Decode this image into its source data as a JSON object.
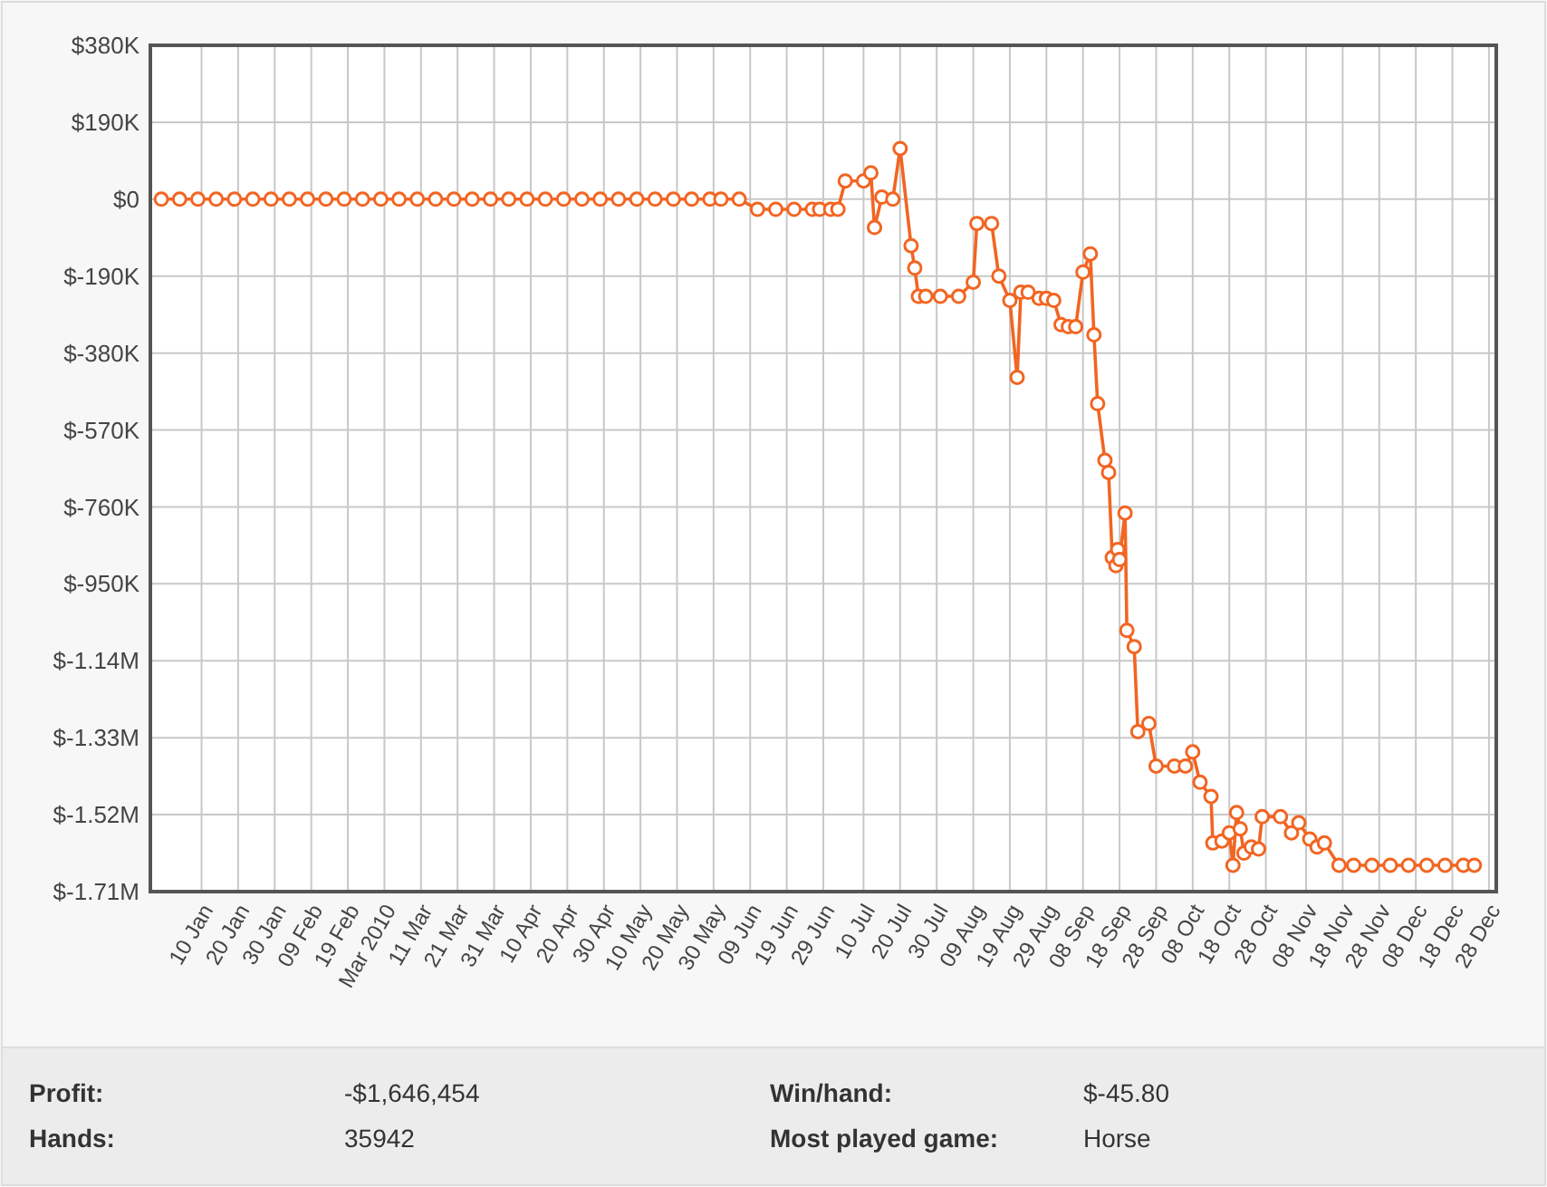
{
  "chart_data": {
    "type": "line",
    "marker": "circle",
    "line_style": "solid",
    "grid": true,
    "xlim": [
      "2009-12-27",
      "2010-12-30"
    ],
    "ylim": [
      -1710000,
      380000
    ],
    "yticks": [
      {
        "value": 380000,
        "label": "$380K"
      },
      {
        "value": 190000,
        "label": "$190K"
      },
      {
        "value": 0,
        "label": "$0"
      },
      {
        "value": -190000,
        "label": "$-190K"
      },
      {
        "value": -380000,
        "label": "$-380K"
      },
      {
        "value": -570000,
        "label": "$-570K"
      },
      {
        "value": -760000,
        "label": "$-760K"
      },
      {
        "value": -950000,
        "label": "$-950K"
      },
      {
        "value": -1140000,
        "label": "$-1.14M"
      },
      {
        "value": -1330000,
        "label": "$-1.33M"
      },
      {
        "value": -1520000,
        "label": "$-1.52M"
      },
      {
        "value": -1710000,
        "label": "$-1.71M"
      }
    ],
    "xticks": [
      {
        "value": "2010-01-10",
        "label": "10 Jan"
      },
      {
        "value": "2010-01-20",
        "label": "20 Jan"
      },
      {
        "value": "2010-01-30",
        "label": "30 Jan"
      },
      {
        "value": "2010-02-09",
        "label": "09 Feb"
      },
      {
        "value": "2010-02-19",
        "label": "19 Feb"
      },
      {
        "value": "2010-03-01",
        "label": "Mar 2010"
      },
      {
        "value": "2010-03-11",
        "label": "11 Mar"
      },
      {
        "value": "2010-03-21",
        "label": "21 Mar"
      },
      {
        "value": "2010-03-31",
        "label": "31 Mar"
      },
      {
        "value": "2010-04-10",
        "label": "10 Apr"
      },
      {
        "value": "2010-04-20",
        "label": "20 Apr"
      },
      {
        "value": "2010-04-30",
        "label": "30 Apr"
      },
      {
        "value": "2010-05-10",
        "label": "10 May"
      },
      {
        "value": "2010-05-20",
        "label": "20 May"
      },
      {
        "value": "2010-05-30",
        "label": "30 May"
      },
      {
        "value": "2010-06-09",
        "label": "09 Jun"
      },
      {
        "value": "2010-06-19",
        "label": "19 Jun"
      },
      {
        "value": "2010-06-29",
        "label": "29 Jun"
      },
      {
        "value": "2010-07-10",
        "label": "10 Jul"
      },
      {
        "value": "2010-07-20",
        "label": "20 Jul"
      },
      {
        "value": "2010-07-30",
        "label": "30 Jul"
      },
      {
        "value": "2010-08-09",
        "label": "09 Aug"
      },
      {
        "value": "2010-08-19",
        "label": "19 Aug"
      },
      {
        "value": "2010-08-29",
        "label": "29 Aug"
      },
      {
        "value": "2010-09-08",
        "label": "08 Sep"
      },
      {
        "value": "2010-09-18",
        "label": "18 Sep"
      },
      {
        "value": "2010-09-28",
        "label": "28 Sep"
      },
      {
        "value": "2010-10-08",
        "label": "08 Oct"
      },
      {
        "value": "2010-10-18",
        "label": "18 Oct"
      },
      {
        "value": "2010-10-28",
        "label": "28 Oct"
      },
      {
        "value": "2010-11-08",
        "label": "08 Nov"
      },
      {
        "value": "2010-11-18",
        "label": "18 Nov"
      },
      {
        "value": "2010-11-28",
        "label": "28 Nov"
      },
      {
        "value": "2010-12-08",
        "label": "08 Dec"
      },
      {
        "value": "2010-12-18",
        "label": "18 Dec"
      },
      {
        "value": "2010-12-28",
        "label": "28 Dec"
      }
    ],
    "x": [
      "2009-12-30",
      "2010-01-04",
      "2010-01-09",
      "2010-01-14",
      "2010-01-19",
      "2010-01-24",
      "2010-01-29",
      "2010-02-03",
      "2010-02-08",
      "2010-02-13",
      "2010-02-18",
      "2010-02-23",
      "2010-02-28",
      "2010-03-05",
      "2010-03-10",
      "2010-03-15",
      "2010-03-20",
      "2010-03-25",
      "2010-03-30",
      "2010-04-04",
      "2010-04-09",
      "2010-04-14",
      "2010-04-19",
      "2010-04-24",
      "2010-04-29",
      "2010-05-04",
      "2010-05-09",
      "2010-05-14",
      "2010-05-19",
      "2010-05-24",
      "2010-05-29",
      "2010-06-01",
      "2010-06-06",
      "2010-06-11",
      "2010-06-16",
      "2010-06-21",
      "2010-06-26",
      "2010-06-28",
      "2010-07-01",
      "2010-07-03",
      "2010-07-05",
      "2010-07-10",
      "2010-07-12",
      "2010-07-13",
      "2010-07-15",
      "2010-07-18",
      "2010-07-20",
      "2010-07-23",
      "2010-07-24",
      "2010-07-25",
      "2010-07-27",
      "2010-07-31",
      "2010-08-05",
      "2010-08-09",
      "2010-08-10",
      "2010-08-14",
      "2010-08-16",
      "2010-08-19",
      "2010-08-21",
      "2010-08-22",
      "2010-08-24",
      "2010-08-27",
      "2010-08-29",
      "2010-08-31",
      "2010-09-02",
      "2010-09-04",
      "2010-09-06",
      "2010-09-08",
      "2010-09-10",
      "2010-09-11",
      "2010-09-12",
      "2010-09-14",
      "2010-09-15",
      "2010-09-16",
      "2010-09-17",
      "2010-09-17T12:00",
      "2010-09-18",
      "2010-09-19T12:00",
      "2010-09-20",
      "2010-09-22",
      "2010-09-23",
      "2010-09-26",
      "2010-09-28",
      "2010-10-03",
      "2010-10-06",
      "2010-10-08",
      "2010-10-10",
      "2010-10-13",
      "2010-10-13T12:00",
      "2010-10-16",
      "2010-10-18",
      "2010-10-19",
      "2010-10-20",
      "2010-10-21",
      "2010-10-22",
      "2010-10-24",
      "2010-10-26",
      "2010-10-27",
      "2010-11-01",
      "2010-11-04",
      "2010-11-06",
      "2010-11-09",
      "2010-11-11",
      "2010-11-13",
      "2010-11-17",
      "2010-11-21",
      "2010-11-26",
      "2010-12-01",
      "2010-12-06",
      "2010-12-11",
      "2010-12-16",
      "2010-12-21",
      "2010-12-24"
    ],
    "series": [
      {
        "color": "#f26522",
        "values": [
          0,
          0,
          0,
          0,
          0,
          0,
          0,
          0,
          0,
          0,
          0,
          0,
          0,
          0,
          0,
          0,
          0,
          0,
          0,
          0,
          0,
          0,
          0,
          0,
          0,
          0,
          0,
          0,
          0,
          0,
          0,
          0,
          0,
          -25000,
          -25000,
          -25000,
          -25000,
          -25000,
          -25000,
          -25000,
          45000,
          45000,
          65000,
          -70000,
          5000,
          0,
          125000,
          -115000,
          -170000,
          -240000,
          -240000,
          -240000,
          -240000,
          -205000,
          -60000,
          -60000,
          -190000,
          -250000,
          -440000,
          -230000,
          -230000,
          -245000,
          -245000,
          -250000,
          -310000,
          -315000,
          -315000,
          -180000,
          -135000,
          -335000,
          -505000,
          -645000,
          -675000,
          -885000,
          -905000,
          -865000,
          -890000,
          -775000,
          -1065000,
          -1105000,
          -1315000,
          -1295000,
          -1400000,
          -1400000,
          -1400000,
          -1365000,
          -1440000,
          -1475000,
          -1590000,
          -1585000,
          -1565000,
          -1645000,
          -1515000,
          -1555000,
          -1615000,
          -1600000,
          -1605000,
          -1525000,
          -1525000,
          -1565000,
          -1540000,
          -1580000,
          -1600000,
          -1590000,
          -1645000,
          -1645000,
          -1645000,
          -1645000,
          -1645000,
          -1645000,
          -1645000,
          -1645000,
          -1645000
        ]
      }
    ],
    "annotations": [
      "Profit:",
      "-$1,646,454",
      "Win/hand:",
      "$-45.80",
      "Hands:",
      "35942",
      "Most played game:",
      "Horse"
    ]
  }
}
